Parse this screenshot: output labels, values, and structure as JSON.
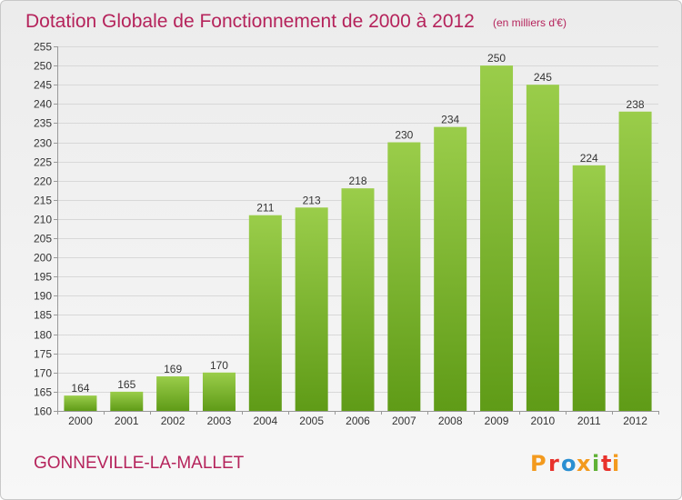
{
  "colors": {
    "title": "#b5235b",
    "bar_light": "#9acd4a",
    "bar_dark": "#5f9b17",
    "grid": "#d8d8d8",
    "axis": "#999999",
    "text": "#333333",
    "logo_colors": [
      "#f39a1e",
      "#e8322c",
      "#2a8fd2",
      "#f39a1e",
      "#5fb135",
      "#e8322c"
    ]
  },
  "footer": {
    "place_name": "GONNEVILLE-LA-MALLET",
    "logo_letters": [
      "P",
      "r",
      "o",
      "x",
      "i",
      "t",
      "i"
    ]
  },
  "chart_data": {
    "type": "bar",
    "title": "Dotation Globale de Fonctionnement de 2000 à 2012",
    "subtitle": "(en milliers d'€)",
    "xlabel": "",
    "ylabel": "",
    "categories": [
      "2000",
      "2001",
      "2002",
      "2003",
      "2004",
      "2005",
      "2006",
      "2007",
      "2008",
      "2009",
      "2010",
      "2011",
      "2012"
    ],
    "values": [
      164,
      165,
      169,
      170,
      211,
      213,
      218,
      230,
      234,
      250,
      245,
      224,
      238
    ],
    "ylim": [
      160,
      255
    ],
    "yticks": [
      160,
      165,
      170,
      175,
      180,
      185,
      190,
      195,
      200,
      205,
      210,
      215,
      220,
      225,
      230,
      235,
      240,
      245,
      250,
      255
    ],
    "grid": true,
    "legend": "none"
  }
}
